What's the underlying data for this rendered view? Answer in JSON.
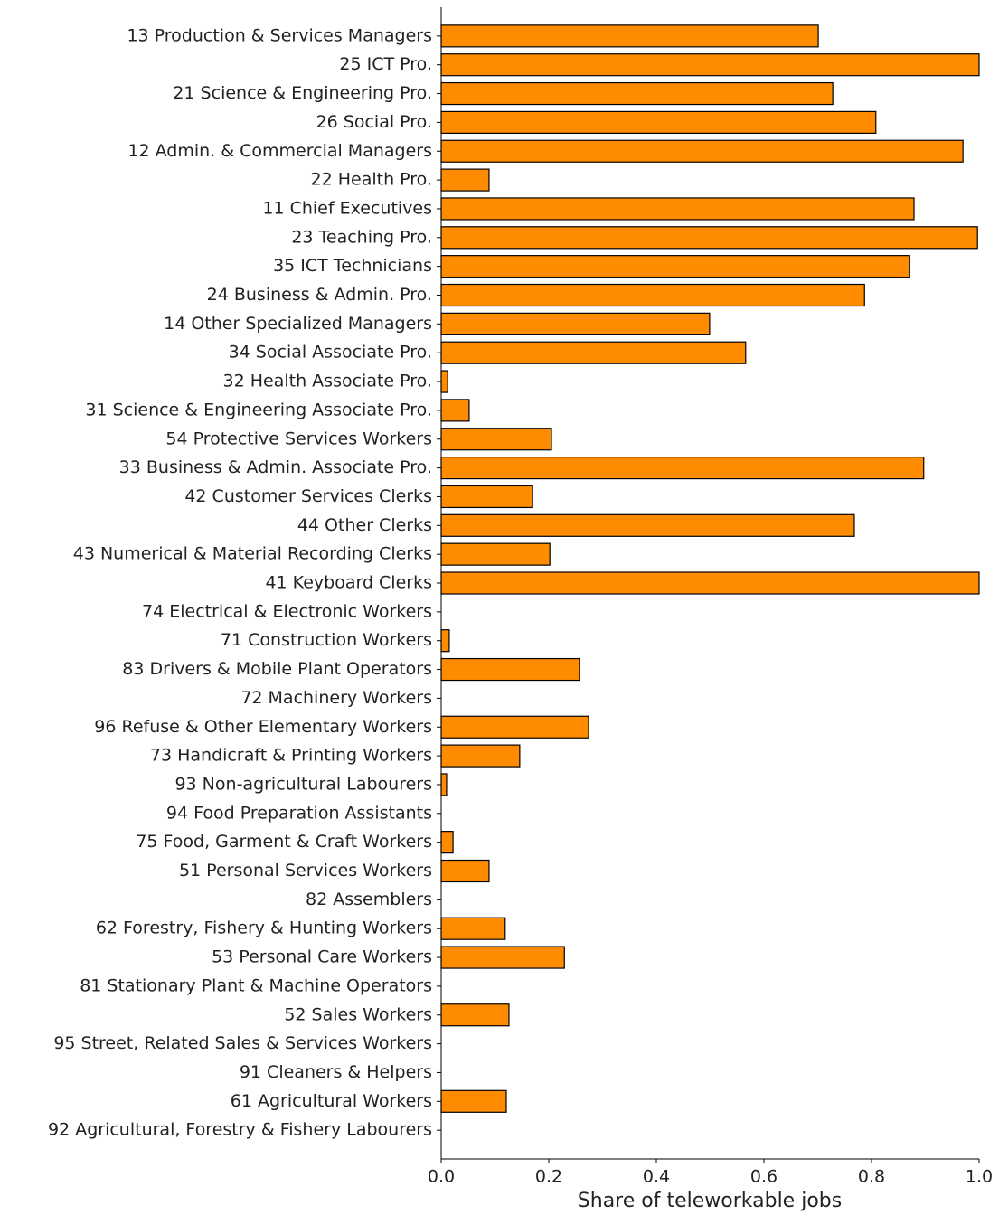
{
  "chart_data": {
    "type": "barh",
    "x_label": "Share of teleworkable jobs",
    "categories": [
      "13 Production & Services Managers",
      "25 ICT Pro.",
      "21 Science & Engineering Pro.",
      "26 Social Pro.",
      "12 Admin. & Commercial Managers",
      "22 Health Pro.",
      "11 Chief Executives",
      "23 Teaching Pro.",
      "35 ICT Technicians",
      "24 Business & Admin. Pro.",
      "14 Other Specialized Managers",
      "34 Social Associate Pro.",
      "32 Health Associate Pro.",
      "31 Science & Engineering Associate Pro.",
      "54 Protective Services Workers",
      "33 Business & Admin. Associate Pro.",
      "42 Customer Services Clerks",
      "44 Other Clerks",
      "43 Numerical & Material Recording Clerks",
      "41 Keyboard Clerks",
      "74 Electrical & Electronic Workers",
      "71 Construction Workers",
      "83 Drivers & Mobile Plant Operators",
      "72 Machinery Workers",
      "96 Refuse & Other Elementary Workers",
      "73 Handicraft & Printing Workers",
      "93 Non-agricultural Labourers",
      "94 Food Preparation Assistants",
      "75 Food, Garment & Craft Workers",
      "51 Personal Services Workers",
      "82 Assemblers",
      "62 Forestry, Fishery & Hunting Workers",
      "53 Personal Care Workers",
      "81 Stationary Plant & Machine Operators",
      "52 Sales Workers",
      "95 Street, Related Sales & Services Workers",
      "91 Cleaners & Helpers",
      "61 Agricultural Workers",
      "92 Agricultural, Forestry & Fishery Labourers"
    ],
    "values": [
      0.701,
      1.0,
      0.728,
      0.808,
      0.97,
      0.089,
      0.879,
      0.997,
      0.871,
      0.787,
      0.499,
      0.566,
      0.012,
      0.052,
      0.205,
      0.897,
      0.17,
      0.768,
      0.202,
      1.0,
      0,
      0.015,
      0.257,
      0,
      0.274,
      0.146,
      0.01,
      0,
      0.022,
      0.089,
      0,
      0.119,
      0.229,
      0,
      0.126,
      0,
      0,
      0.121,
      0
    ],
    "color": "#ff8c00",
    "edge_color": "#000000",
    "xlim": [
      0,
      1
    ],
    "xticks": [
      {
        "value": 0,
        "label": "0.0"
      },
      {
        "value": 0.2,
        "label": "0.2"
      },
      {
        "value": 0.4,
        "label": "0.4"
      },
      {
        "value": 0.6,
        "label": "0.6"
      },
      {
        "value": 0.8,
        "label": "0.8"
      },
      {
        "value": 1,
        "label": "1.0"
      }
    ]
  }
}
